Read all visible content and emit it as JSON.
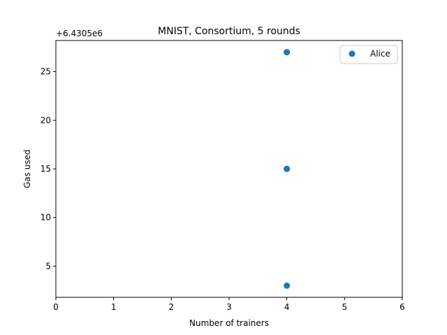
{
  "chart_data": {
    "type": "scatter",
    "title": "MNIST, Consortium, 5 rounds",
    "xlabel": "Number of trainers",
    "ylabel": "Gas used",
    "y_offset_label": "+6.4305e6",
    "xlim": [
      0,
      6
    ],
    "ylim": [
      1.8,
      28.2
    ],
    "x_ticks": [
      0,
      1,
      2,
      3,
      4,
      5,
      6
    ],
    "x_tick_labels": [
      "0",
      "1",
      "2",
      "3",
      "4",
      "5",
      "6"
    ],
    "y_ticks": [
      5,
      10,
      15,
      20,
      25
    ],
    "y_tick_labels": [
      "5",
      "10",
      "15",
      "20",
      "25"
    ],
    "grid": false,
    "legend_position": "top-right",
    "series": [
      {
        "name": "Alice",
        "color": "#1f77b4",
        "points": [
          {
            "x": 4,
            "y": 27
          },
          {
            "x": 4,
            "y": 27
          },
          {
            "x": 4,
            "y": 15
          },
          {
            "x": 4,
            "y": 15
          },
          {
            "x": 4,
            "y": 15
          },
          {
            "x": 4,
            "y": 3
          }
        ]
      }
    ]
  }
}
